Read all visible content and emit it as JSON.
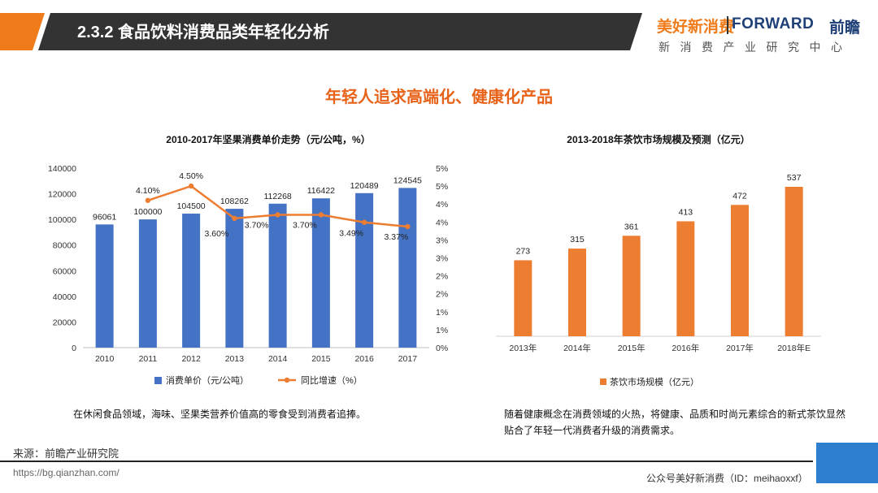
{
  "header": {
    "section_title": "2.3.2 食品饮料消费品类年轻化分析",
    "band_color": "#333333",
    "accent_color": "#f07b1a"
  },
  "brand": {
    "cn_name": "美好新消费",
    "en_name": "FORWARD",
    "en_cn": "前瞻",
    "tagline": "新消费产业研究中心"
  },
  "main_heading": "年轻人追求高端化、健康化产品",
  "chart_data": [
    {
      "type": "bar",
      "title": "2010-2017年坚果消费单价走势（元/公吨，%）",
      "categories": [
        "2010",
        "2011",
        "2012",
        "2013",
        "2014",
        "2015",
        "2016",
        "2017"
      ],
      "series": [
        {
          "name": "消费单价（元/公吨）",
          "type": "bar",
          "values": [
            96061,
            100000,
            104500,
            108262,
            112268,
            116422,
            120489,
            124545
          ],
          "labels": [
            "96061",
            "100000",
            "104500",
            "108262",
            "112268",
            "116422",
            "120489",
            "124545"
          ],
          "color": "#4472c4",
          "axis": "left"
        },
        {
          "name": "同比增速（%）",
          "type": "line",
          "values": [
            null,
            4.1,
            4.5,
            3.6,
            3.7,
            3.7,
            3.49,
            3.37
          ],
          "labels": [
            "",
            "4.10%",
            "4.50%",
            "3.60%",
            "3.70%",
            "3.70%",
            "3.49%",
            "3.37%"
          ],
          "color": "#ed7d31",
          "axis": "right"
        }
      ],
      "y_left": {
        "min": 0,
        "max": 140000,
        "ticks": [
          "0",
          "20000",
          "40000",
          "60000",
          "80000",
          "100000",
          "120000",
          "140000"
        ]
      },
      "y_right": {
        "min": 0,
        "max": 5,
        "ticks": [
          "0%",
          "1%",
          "1%",
          "2%",
          "2%",
          "3%",
          "3%",
          "4%",
          "4%",
          "5%",
          "5%"
        ]
      },
      "legend_position": "bottom",
      "grid": false
    },
    {
      "type": "bar",
      "title": "2013-2018年茶饮市场规模及预测（亿元）",
      "categories": [
        "2013年",
        "2014年",
        "2015年",
        "2016年",
        "2017年",
        "2018年E"
      ],
      "series": [
        {
          "name": "茶饮市场规模（亿元）",
          "values": [
            273,
            315,
            361,
            413,
            472,
            537
          ],
          "labels": [
            "273",
            "315",
            "361",
            "413",
            "472",
            "537"
          ],
          "color": "#ed7d31"
        }
      ],
      "legend_position": "bottom",
      "grid": false
    }
  ],
  "captions": {
    "left": "在休闲食品领域，海味、坚果类营养价值高的零食受到消费者追捧。",
    "right": "随着健康概念在消费领域的火热，将健康、品质和时尚元素综合的新式茶饮显然贴合了年轻一代消费者升级的消费需求。"
  },
  "footer": {
    "source": "来源：前瞻产业研究院",
    "url": "https://bg.qianzhan.com/",
    "wechat": "公众号美好新消费（ID：meihaoxxf）"
  }
}
